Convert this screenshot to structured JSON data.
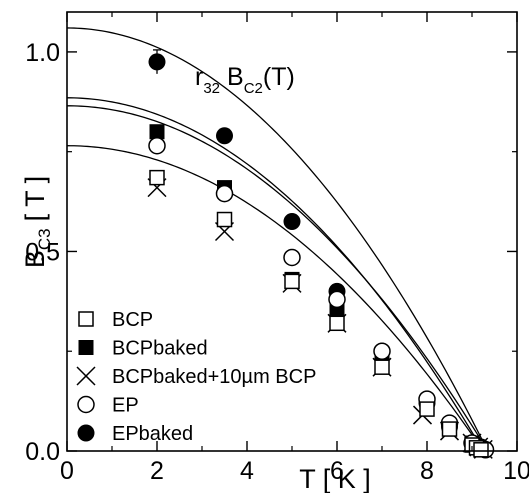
{
  "chart_data": {
    "type": "scatter",
    "xlabel": "T [ K ]",
    "ylabel": {
      "main": "B",
      "sub": "C3",
      "unit": "[ T ]"
    },
    "annotation": {
      "r": "r",
      "r_sub": "32",
      "b": "B",
      "b_sub": "C2",
      "arg": "(T)"
    },
    "xlim": [
      0,
      10
    ],
    "ylim": [
      0,
      1.1
    ],
    "xticks": [
      0,
      2,
      4,
      6,
      8,
      10
    ],
    "xtick_labels": [
      "0",
      "2",
      "4",
      "6",
      "8",
      "10"
    ],
    "yticks": [
      0.0,
      0.5,
      1.0
    ],
    "ytick_labels": [
      "0.0",
      "0.5",
      "1.0"
    ],
    "grid": false,
    "legend_position": "bottom-left",
    "series": [
      {
        "name": "BCP",
        "marker": "open-square",
        "fit": {
          "b0": 0.765,
          "tc": 9.25
        },
        "x": [
          2.0,
          3.5,
          5.0,
          6.0,
          7.0,
          8.0,
          8.5,
          9.0,
          9.1,
          9.2
        ],
        "y": [
          0.685,
          0.58,
          0.425,
          0.32,
          0.21,
          0.105,
          0.055,
          0.015,
          0.008,
          0.003
        ]
      },
      {
        "name": "BCPbaked",
        "marker": "filled-square",
        "fit": {
          "b0": 0.885,
          "tc": 9.25
        },
        "x": [
          2.0,
          3.5,
          5.0,
          6.0,
          7.0,
          8.0,
          8.5,
          9.0,
          9.1,
          9.2
        ],
        "y": [
          0.8,
          0.66,
          0.43,
          0.35,
          0.22,
          0.11,
          0.06,
          0.02,
          0.01,
          0.004
        ]
      },
      {
        "name": "BCPbaked+10µm BCP",
        "marker": "cross",
        "fit": null,
        "x": [
          2.0,
          3.5,
          5.0,
          6.0,
          7.0,
          7.9,
          8.5,
          9.0,
          9.15,
          9.25
        ],
        "y": [
          0.66,
          0.55,
          0.42,
          0.32,
          0.21,
          0.09,
          0.05,
          0.02,
          0.01,
          0.004
        ]
      },
      {
        "name": "EP",
        "marker": "open-circle",
        "fit": {
          "b0": 0.865,
          "tc": 9.35
        },
        "x": [
          2.0,
          3.5,
          5.0,
          6.0,
          7.0,
          8.0,
          8.5,
          9.0,
          9.2,
          9.3
        ],
        "y": [
          0.765,
          0.645,
          0.485,
          0.38,
          0.25,
          0.13,
          0.07,
          0.02,
          0.008,
          0.003
        ]
      },
      {
        "name": "EPbaked",
        "marker": "filled-circle",
        "fit": {
          "b0": 1.06,
          "tc": 9.35
        },
        "x": [
          2.0,
          3.5,
          5.0,
          6.0,
          7.0,
          8.0,
          8.5,
          9.0,
          9.2,
          9.3
        ],
        "y": [
          0.975,
          0.79,
          0.575,
          0.4,
          0.25,
          0.12,
          0.06,
          0.02,
          0.01,
          0.004
        ],
        "error_x": 2.0,
        "error": 0.03
      }
    ]
  }
}
